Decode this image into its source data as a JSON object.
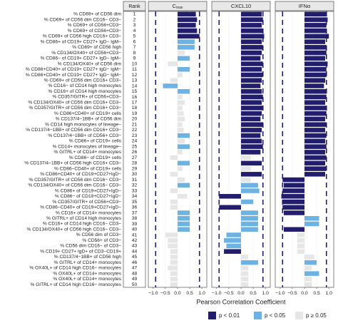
{
  "chart_data": {
    "type": "bar",
    "rank_header": "Rank",
    "ranks": [
      1,
      2,
      3,
      4,
      5,
      6,
      7,
      8,
      9,
      10,
      11,
      12,
      13,
      14,
      15,
      16,
      17,
      18,
      19,
      20,
      21,
      22,
      23,
      24,
      25,
      26,
      27,
      28,
      29,
      30,
      31,
      32,
      33,
      34,
      35,
      36,
      37,
      38,
      39,
      40,
      41,
      42,
      43,
      44,
      45,
      46,
      47,
      48,
      49,
      50
    ],
    "categories": [
      "% CD69+ of CD56 dim",
      "% CD69+ of CD56 dim CD16− CD3−",
      "% CD69+ of CD56+CD3−",
      "% CD69+ of CD56+CD3−",
      "% CD69+ of CD56 high CD16+ CD3−",
      "% CD86+ of CD19+ CD27+ IgD− IgM−",
      "% CD69+ of CD56 high",
      "% CD134/OX40+ of CD56+CD3−",
      "% CD86− of CD19+ CD27+ IgD− IgM−",
      "% CD134/OX40+ of CD56 dim",
      "% CD86+CD40+ of CD19+ CD27+ IgD− IgM−",
      "% CD86+CD40+ of CD19+ CD27+ IgD− IgM−",
      "% CD69+ of CD56 dim CD16+ CD3−",
      "% CD16− of CD14 high monocytes",
      "% CD16+ of CD14 high monocytes",
      "% CD357/GITR+ of CD56+CD3−",
      "% CD134/OX40+ of CD56 dim CD16+ CD3−",
      "% CD357/GITR+ of CD56 dim CD16+ CD3−",
      "% CD86+CD40+ of CD19+ cells",
      "% CD137/4−1BB+ of CD56 dim",
      "% CD14 high monocytes of lineage−",
      "% CD137/4−1BB+ of CD56 dim CD16+ CD3−",
      "% CD137/4−1BB+ of CD56+ CD3−",
      "% CD86+ of CD19+ cells",
      "% CD14+ monocytes of lineage−",
      "% GITRL+ of CD14+ monocytes",
      "% CD86− of CD19+ cells",
      "% CD137/4−1BB+ of CD56 high CD16+ CD3−",
      "% CD86−CD40+ of CD19+ cells",
      "% CD86+CD40+ of CD19+CD27+IgD−",
      "% CD357/GITR+ of CD56 dim CD16− CD3−",
      "% CD134/OX40+ of CD56 dim CD16− CD3−",
      "% CD86+ of CD19+CD27+IgD−",
      "% CD86− of CD19+CD27+IgD−",
      "% CD357/GITR+ of CD56+CD3−",
      "% CD86−CD40+ of CD19+CD27+IgD−",
      "% CD16+ of CD14+ monocytes",
      "% GITRL+ of CD14 high monocytes",
      "% CD16+ of CD14 high CD16− CD3−",
      "% CD134/OX40+ of CD56 high CD16− CD3−",
      "% CD56 dim of CD3−",
      "% CD56+ of CD3−",
      "% CD56 dim CD16− of CD3−",
      "% CD19+ CD27+ IgD+ of CD3−CD19+",
      "% CD137/4−1BB+ of CD56 high",
      "% GITRL+ of CD14+ monocytes",
      "% OX40L+ of CD14 high CD16− monocytes",
      "% OX40L+ of CD14+ monocytes",
      "% OX40L+ of CD14+ monocytes",
      "% GITRL+ of CD14 high CD16− monocytes"
    ],
    "legend": [
      {
        "name": "p < 0.01",
        "color": "#231d6e"
      },
      {
        "name": "p < 0.05",
        "color": "#6cb2e2"
      },
      {
        "name": "p ≥ 0.05",
        "color": "#e6e6e6"
      }
    ],
    "panels": [
      {
        "title": "C",
        "title_sub": "max",
        "values": [
          0.75,
          0.8,
          0.75,
          0.8,
          0.9,
          0.7,
          0.7,
          0.3,
          0.5,
          -0.4,
          0.5,
          0.2,
          -0.3,
          -0.6,
          0.5,
          0.2,
          0.3,
          0.2,
          0.25,
          0.3,
          0.2,
          0.25,
          0.5,
          0.3,
          0.5,
          0.2,
          -0.3,
          0.5,
          0.2,
          -0.3,
          0.3,
          0.5,
          -0.3,
          0.4,
          -0.3,
          -0.3,
          0.5,
          0.5,
          0.5,
          0.5,
          -0.5,
          -0.4,
          -0.4,
          -0.3,
          -0.3,
          -0.3,
          -0.4,
          -0.3,
          -0.3,
          -0.3
        ],
        "significance": [
          0,
          0,
          0,
          0,
          0,
          1,
          1,
          2,
          1,
          2,
          1,
          2,
          2,
          1,
          1,
          2,
          2,
          2,
          2,
          2,
          2,
          2,
          1,
          2,
          1,
          2,
          2,
          1,
          2,
          2,
          2,
          1,
          2,
          2,
          2,
          2,
          1,
          1,
          1,
          1,
          2,
          2,
          2,
          2,
          2,
          2,
          2,
          2,
          2,
          2
        ]
      },
      {
        "title": "CXCL10",
        "values": [
          0.85,
          0.9,
          0.85,
          0.9,
          0.95,
          0.85,
          0.9,
          0.85,
          0.8,
          0.9,
          0.85,
          0.9,
          0.85,
          0.8,
          0.85,
          0.9,
          0.85,
          0.9,
          0.85,
          0.8,
          0.9,
          0.85,
          0.8,
          0.85,
          0.9,
          0.8,
          0.4,
          0.85,
          0.4,
          0.85,
          0.4,
          0.7,
          0.75,
          -0.9,
          0.5,
          -0.9,
          0.7,
          0.7,
          0.7,
          0.7,
          -0.6,
          -0.7,
          -0.6,
          -0.7,
          0.3,
          0.7,
          0.3,
          0.3,
          0.3,
          0.3
        ],
        "significance": [
          0,
          0,
          0,
          0,
          0,
          0,
          0,
          0,
          0,
          0,
          0,
          0,
          0,
          0,
          0,
          0,
          0,
          0,
          0,
          0,
          0,
          0,
          0,
          0,
          0,
          0,
          2,
          0,
          2,
          0,
          2,
          1,
          1,
          0,
          1,
          0,
          1,
          1,
          1,
          1,
          1,
          1,
          1,
          0,
          2,
          1,
          2,
          2,
          2,
          2
        ]
      },
      {
        "title": "IFNα",
        "values": [
          0.9,
          0.95,
          0.9,
          0.9,
          1.0,
          0.85,
          0.9,
          0.9,
          0.85,
          0.95,
          0.9,
          0.9,
          0.85,
          0.8,
          0.9,
          0.9,
          0.85,
          0.9,
          0.9,
          0.85,
          0.9,
          0.85,
          0.9,
          0.85,
          0.9,
          0.85,
          0.9,
          0.85,
          0.9,
          0.85,
          -0.9,
          -0.85,
          -0.9,
          -0.95,
          -0.9,
          -0.9,
          -0.85,
          0.6,
          0.6,
          -0.85,
          -0.3,
          -0.3,
          -0.3,
          -0.3,
          0.4,
          0.5,
          0.3,
          0.6,
          0.3,
          0.3
        ],
        "significance": [
          0,
          0,
          0,
          0,
          0,
          0,
          0,
          0,
          0,
          0,
          0,
          0,
          0,
          0,
          0,
          0,
          0,
          0,
          0,
          0,
          0,
          0,
          0,
          0,
          0,
          0,
          0,
          0,
          0,
          0,
          0,
          0,
          0,
          0,
          0,
          0,
          0,
          1,
          1,
          0,
          2,
          2,
          2,
          2,
          2,
          1,
          2,
          1,
          2,
          2
        ]
      }
    ],
    "xlim": [
      -1.2,
      1.2
    ],
    "xticks": [
      {
        "value": -1,
        "label": "−1.0"
      },
      {
        "value": -0.5,
        "label": "−0.5"
      },
      {
        "value": 0,
        "label": "0.0"
      },
      0.5,
      {
        "value": 1,
        "label": "1.0"
      }
    ],
    "reference_lines": [
      -0.9,
      0.9
    ],
    "xlabel": "Pearson Correlation Coefficient"
  }
}
